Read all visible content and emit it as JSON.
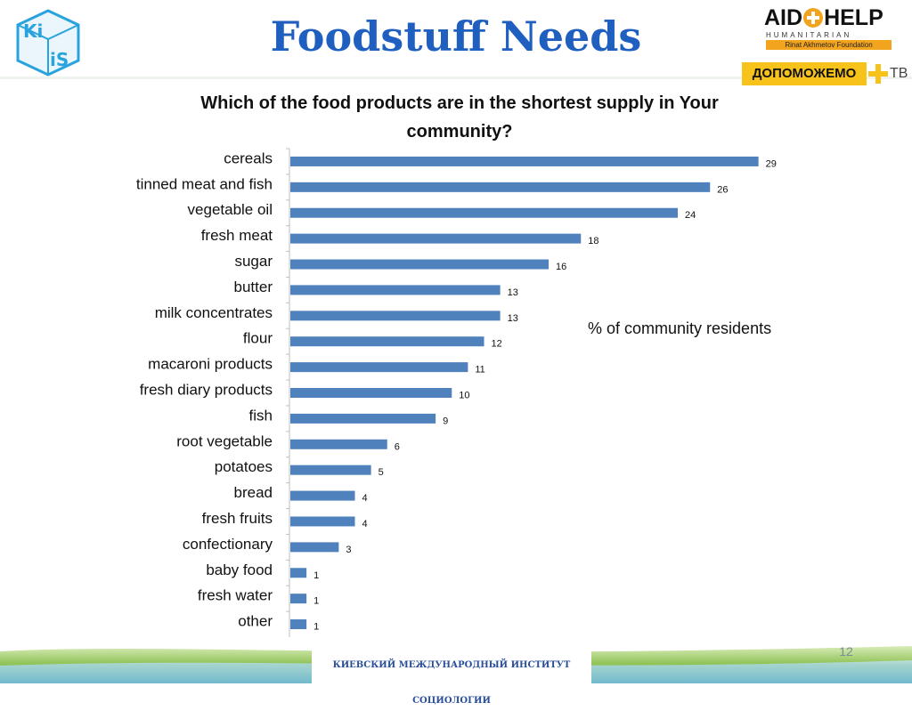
{
  "header": {
    "title": "Foodstuff Needs",
    "kiis_logo_text": "KIIS",
    "aid_logo": {
      "main_left": "AID",
      "main_right": "HELP",
      "subtitle": "HUMANITARIAN CENTER",
      "foundation": "Rinat Akhmetov Foundation"
    },
    "banner": {
      "text": "ДОПОМОЖЕМО",
      "tv": "ТВ"
    }
  },
  "chart_data": {
    "type": "bar",
    "orientation": "horizontal",
    "title": "Which of the food products are in the shortest supply in Your community?",
    "unit_note": "% of community residents",
    "categories": [
      "cereals",
      "tinned meat and fish",
      "vegetable oil",
      "fresh meat",
      "sugar",
      "butter",
      "milk concentrates",
      "flour",
      "macaroni products",
      "fresh diary products",
      "fish",
      "root vegetable",
      "potatoes",
      "bread",
      "fresh fruits",
      "confectionary",
      "baby food",
      "fresh water",
      "other"
    ],
    "values": [
      29,
      26,
      24,
      18,
      16,
      13,
      13,
      12,
      11,
      10,
      9,
      6,
      5,
      4,
      4,
      3,
      1,
      1,
      1
    ],
    "xlim": [
      0,
      32
    ],
    "grid": false,
    "bar_color": "#4f81bd"
  },
  "footer": {
    "institute": "КИЕВСКИЙ МЕЖДУНАРОДНЫЙ ИНСТИТУТ СОЦИОЛОГИИ",
    "page_number": "12"
  }
}
